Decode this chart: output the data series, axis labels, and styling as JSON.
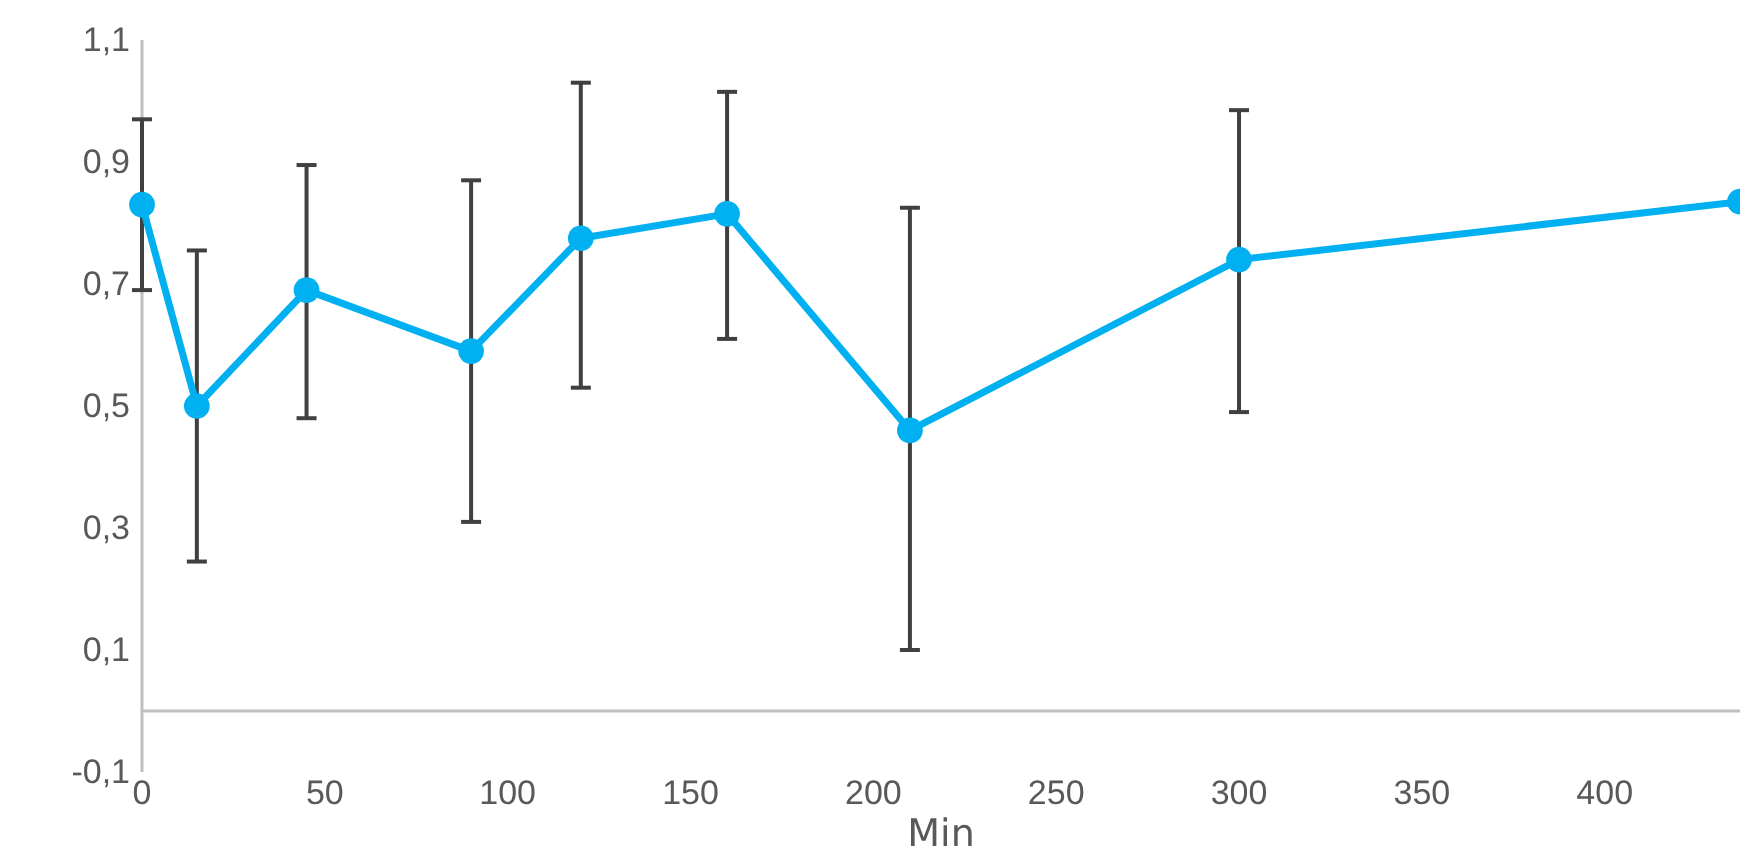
{
  "chart_data": {
    "type": "line",
    "xlabel": "Min",
    "x": [
      0,
      15,
      45,
      90,
      120,
      160,
      210,
      300,
      437
    ],
    "series": [
      {
        "color": "#00b0f0",
        "values": [
          0.83,
          0.5,
          0.69,
          0.59,
          0.775,
          0.815,
          0.46,
          0.74,
          0.835
        ],
        "errors": [
          [
            0.69,
            0.97
          ],
          [
            0.245,
            0.755
          ],
          [
            0.48,
            0.895
          ],
          [
            0.31,
            0.87
          ],
          [
            0.53,
            1.03
          ],
          [
            0.61,
            1.015
          ],
          [
            0.1,
            0.825
          ],
          [
            0.49,
            0.985
          ],
          null
        ]
      }
    ],
    "marker": "circle",
    "grid": false,
    "xlim": [
      0,
      437
    ],
    "xticks": [
      0,
      50,
      100,
      150,
      200,
      250,
      300,
      350,
      400
    ],
    "ylim": [
      -0.1,
      1.1
    ],
    "yticks": [
      {
        "value": -0.1,
        "label": "-0,1"
      },
      {
        "value": 0.1,
        "label": "0,1"
      },
      {
        "value": 0.3,
        "label": "0,3"
      },
      {
        "value": 0.5,
        "label": "0,5"
      },
      {
        "value": 0.7,
        "label": "0,7"
      },
      {
        "value": 0.9,
        "label": "0,9"
      },
      {
        "value": 1.1,
        "label": "1,1"
      }
    ]
  }
}
